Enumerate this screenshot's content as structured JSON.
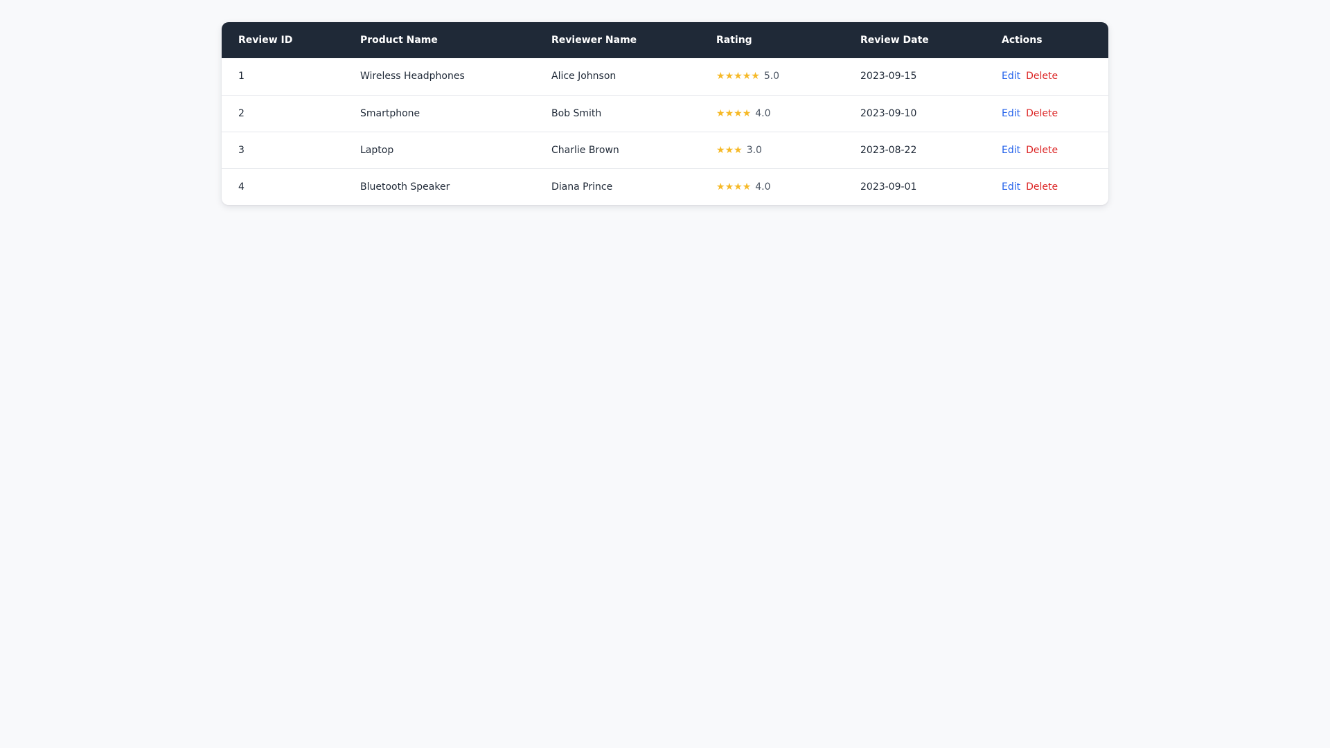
{
  "table": {
    "headers": {
      "review_id": "Review ID",
      "product_name": "Product Name",
      "reviewer_name": "Reviewer Name",
      "rating": "Rating",
      "review_date": "Review Date",
      "actions": "Actions"
    },
    "rows": [
      {
        "review_id": "1",
        "product_name": "Wireless Headphones",
        "reviewer_name": "Alice Johnson",
        "stars": 5,
        "rating": "5.0",
        "review_date": "2023-09-15"
      },
      {
        "review_id": "2",
        "product_name": "Smartphone",
        "reviewer_name": "Bob Smith",
        "stars": 4,
        "rating": "4.0",
        "review_date": "2023-09-10"
      },
      {
        "review_id": "3",
        "product_name": "Laptop",
        "reviewer_name": "Charlie Brown",
        "stars": 3,
        "rating": "3.0",
        "review_date": "2023-08-22"
      },
      {
        "review_id": "4",
        "product_name": "Bluetooth Speaker",
        "reviewer_name": "Diana Prince",
        "stars": 4,
        "rating": "4.0",
        "review_date": "2023-09-01"
      }
    ],
    "action_labels": {
      "edit": "Edit",
      "delete": "Delete"
    }
  },
  "colors": {
    "header_bg": "#1f2937",
    "star": "#f6b927",
    "edit_link": "#2563eb",
    "delete_link": "#dc2626",
    "page_bg": "#f8f9fb"
  },
  "icons": {
    "star": "star-icon"
  }
}
